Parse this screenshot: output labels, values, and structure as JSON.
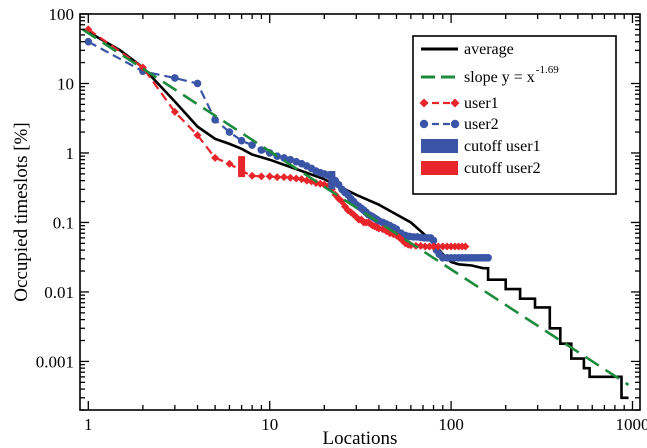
{
  "chart_data": {
    "type": "line",
    "xlabel": "Locations",
    "ylabel": "Occupied timeslots [%]",
    "xscale": "log",
    "yscale": "log",
    "xlim": [
      0.9,
      1100
    ],
    "ylim": [
      0.0002,
      100
    ],
    "x_ticks": [
      {
        "value": 1,
        "label": "1"
      },
      {
        "value": 10,
        "label": "10"
      },
      {
        "value": 100,
        "label": "100"
      },
      {
        "value": 1000,
        "label": "1000"
      }
    ],
    "y_ticks": [
      {
        "value": 100,
        "label": "100"
      },
      {
        "value": 10,
        "label": "10"
      },
      {
        "value": 1,
        "label": "1"
      },
      {
        "value": 0.1,
        "label": "0.1"
      },
      {
        "value": 0.01,
        "label": "0.01"
      },
      {
        "value": 0.001,
        "label": "0.001"
      }
    ],
    "grid": false,
    "legend_position": "top-right",
    "legend": [
      {
        "label": "average",
        "sup": "",
        "color": "#000000",
        "style": "solid"
      },
      {
        "label": "slope y =  x",
        "sup": "-1.69",
        "color": "#1e8a3c",
        "style": "dashed"
      },
      {
        "label": "user1",
        "sup": "",
        "color": "#e8252b",
        "style": "dashed-diamond"
      },
      {
        "label": "user2",
        "sup": "",
        "color": "#3b55a6",
        "style": "dashed-circle"
      },
      {
        "label": "cutoff user1",
        "sup": "",
        "color": "#3b55a6",
        "style": "block"
      },
      {
        "label": "cutoff user2",
        "sup": "",
        "color": "#e8252b",
        "style": "block"
      }
    ],
    "series": [
      {
        "name": "average",
        "color": "#000000",
        "style": "solid",
        "points": [
          [
            1,
            55
          ],
          [
            1.5,
            30
          ],
          [
            2,
            17
          ],
          [
            3,
            5.5
          ],
          [
            4,
            2.4
          ],
          [
            5,
            1.6
          ],
          [
            6,
            1.35
          ],
          [
            7,
            1.15
          ],
          [
            8,
            0.95
          ],
          [
            10,
            0.8
          ],
          [
            15,
            0.55
          ],
          [
            20,
            0.42
          ],
          [
            30,
            0.25
          ],
          [
            40,
            0.18
          ],
          [
            50,
            0.13
          ],
          [
            60,
            0.1
          ],
          [
            70,
            0.07
          ],
          [
            80,
            0.05
          ],
          [
            90,
            0.035
          ],
          [
            100,
            0.027
          ],
          [
            110,
            0.025
          ],
          [
            130,
            0.024
          ],
          [
            150,
            0.022
          ],
          [
            160,
            0.015
          ],
          [
            180,
            0.015
          ],
          [
            200,
            0.011
          ],
          [
            220,
            0.011
          ],
          [
            240,
            0.008
          ],
          [
            270,
            0.008
          ],
          [
            290,
            0.006
          ],
          [
            320,
            0.006
          ],
          [
            350,
            0.003
          ],
          [
            380,
            0.003
          ],
          [
            400,
            0.0018
          ],
          [
            430,
            0.0018
          ],
          [
            460,
            0.0011
          ],
          [
            520,
            0.0011
          ],
          [
            540,
            0.0008
          ],
          [
            560,
            0.0008
          ],
          [
            580,
            0.0006
          ],
          [
            850,
            0.0006
          ],
          [
            870,
            0.0003
          ],
          [
            950,
            0.0003
          ]
        ],
        "step_tail_from": 150
      },
      {
        "name": "slope y =  x",
        "sup": "-1.69",
        "color": "#1e8a3c",
        "style": "dashed",
        "points": [
          [
            0.93,
            60
          ],
          [
            950,
            0.00046
          ]
        ]
      },
      {
        "name": "user1",
        "color": "#e8252b",
        "style": "dashed-diamond",
        "points": [
          [
            1,
            60
          ],
          [
            2,
            17
          ],
          [
            3,
            3.9
          ],
          [
            4,
            1.8
          ],
          [
            5,
            0.85
          ],
          [
            6,
            0.7
          ],
          [
            7,
            0.55
          ],
          [
            8,
            0.47
          ],
          [
            9,
            0.46
          ],
          [
            10,
            0.46
          ],
          [
            11,
            0.45
          ],
          [
            12,
            0.45
          ],
          [
            13,
            0.44
          ],
          [
            14,
            0.43
          ],
          [
            15,
            0.42
          ],
          [
            16,
            0.4
          ],
          [
            17,
            0.39
          ],
          [
            18,
            0.37
          ],
          [
            19,
            0.36
          ],
          [
            20,
            0.35
          ],
          [
            21,
            0.33
          ],
          [
            22,
            0.3
          ],
          [
            23,
            0.25
          ],
          [
            24,
            0.22
          ],
          [
            25,
            0.2
          ],
          [
            26,
            0.17
          ],
          [
            27,
            0.15
          ],
          [
            28,
            0.14
          ],
          [
            29,
            0.13
          ],
          [
            30,
            0.12
          ],
          [
            31,
            0.11
          ],
          [
            32,
            0.11
          ],
          [
            33,
            0.1
          ],
          [
            34,
            0.1
          ],
          [
            35,
            0.1
          ],
          [
            36,
            0.095
          ],
          [
            37,
            0.09
          ],
          [
            38,
            0.088
          ],
          [
            39,
            0.085
          ],
          [
            40,
            0.082
          ],
          [
            42,
            0.08
          ],
          [
            44,
            0.075
          ],
          [
            46,
            0.07
          ],
          [
            48,
            0.068
          ],
          [
            50,
            0.065
          ],
          [
            52,
            0.06
          ],
          [
            54,
            0.055
          ],
          [
            56,
            0.05
          ],
          [
            58,
            0.048
          ],
          [
            60,
            0.047
          ],
          [
            64,
            0.046
          ],
          [
            68,
            0.046
          ],
          [
            72,
            0.045
          ],
          [
            76,
            0.045
          ],
          [
            80,
            0.045
          ],
          [
            85,
            0.045
          ],
          [
            90,
            0.045
          ],
          [
            95,
            0.045
          ],
          [
            100,
            0.045
          ],
          [
            105,
            0.045
          ],
          [
            110,
            0.045
          ],
          [
            115,
            0.045
          ],
          [
            120,
            0.045
          ]
        ]
      },
      {
        "name": "user2",
        "color": "#3b55a6",
        "style": "dashed-circle",
        "points": [
          [
            1,
            40
          ],
          [
            2,
            15
          ],
          [
            3,
            12
          ],
          [
            4,
            10
          ],
          [
            5,
            3
          ],
          [
            6,
            2
          ],
          [
            7,
            1.5
          ],
          [
            8,
            1.3
          ],
          [
            9,
            1.1
          ],
          [
            10,
            1.0
          ],
          [
            11,
            0.9
          ],
          [
            12,
            0.85
          ],
          [
            13,
            0.8
          ],
          [
            14,
            0.75
          ],
          [
            15,
            0.7
          ],
          [
            16,
            0.65
          ],
          [
            17,
            0.6
          ],
          [
            18,
            0.55
          ],
          [
            19,
            0.52
          ],
          [
            20,
            0.5
          ],
          [
            21,
            0.48
          ],
          [
            22,
            0.45
          ],
          [
            23,
            0.4
          ],
          [
            24,
            0.35
          ],
          [
            25,
            0.3
          ],
          [
            26,
            0.27
          ],
          [
            27,
            0.25
          ],
          [
            28,
            0.22
          ],
          [
            29,
            0.2
          ],
          [
            30,
            0.18
          ],
          [
            31,
            0.17
          ],
          [
            32,
            0.16
          ],
          [
            33,
            0.15
          ],
          [
            34,
            0.14
          ],
          [
            35,
            0.13
          ],
          [
            36,
            0.125
          ],
          [
            37,
            0.12
          ],
          [
            38,
            0.115
          ],
          [
            39,
            0.11
          ],
          [
            40,
            0.105
          ],
          [
            42,
            0.1
          ],
          [
            44,
            0.095
          ],
          [
            46,
            0.09
          ],
          [
            48,
            0.085
          ],
          [
            50,
            0.08
          ],
          [
            53,
            0.07
          ],
          [
            56,
            0.065
          ],
          [
            59,
            0.063
          ],
          [
            62,
            0.062
          ],
          [
            65,
            0.062
          ],
          [
            68,
            0.061
          ],
          [
            71,
            0.06
          ],
          [
            74,
            0.06
          ],
          [
            77,
            0.06
          ],
          [
            80,
            0.055
          ],
          [
            83,
            0.04
          ],
          [
            86,
            0.035
          ],
          [
            90,
            0.031
          ],
          [
            95,
            0.031
          ],
          [
            100,
            0.031
          ],
          [
            105,
            0.031
          ],
          [
            110,
            0.031
          ],
          [
            115,
            0.031
          ],
          [
            120,
            0.031
          ],
          [
            125,
            0.031
          ],
          [
            130,
            0.031
          ],
          [
            135,
            0.031
          ],
          [
            140,
            0.031
          ],
          [
            145,
            0.031
          ],
          [
            150,
            0.031
          ],
          [
            155,
            0.031
          ],
          [
            160,
            0.031
          ]
        ]
      }
    ],
    "cutoffs": [
      {
        "name": "cutoff user1",
        "color": "#3b55a6",
        "x": 22,
        "y_low": 0.3,
        "y_high": 0.55
      },
      {
        "name": "cutoff user2",
        "color": "#e8252b",
        "x": 7,
        "y_low": 0.45,
        "y_high": 0.9
      }
    ]
  }
}
